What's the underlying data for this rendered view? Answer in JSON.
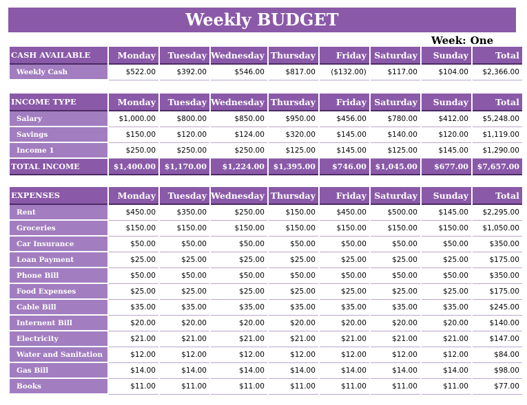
{
  "title": "Weekly BUDGET",
  "week": {
    "label": "Week:",
    "value": "One"
  },
  "days": [
    "Monday",
    "Tuesday",
    "Wednesday",
    "Thursday",
    "Friday",
    "Saturday",
    "Sunday",
    "Total"
  ],
  "cash": {
    "header": "CASH AVAILABLE",
    "rows": [
      {
        "label": "Weekly Cash",
        "values": [
          "$522.00",
          "$392.00",
          "$546.00",
          "$817.00",
          "($132.00)",
          "$117.00",
          "$104.00",
          "$2,366.00"
        ]
      }
    ]
  },
  "income": {
    "header": "INCOME TYPE",
    "rows": [
      {
        "label": "Salary",
        "values": [
          "$1,000.00",
          "$800.00",
          "$850.00",
          "$950.00",
          "$456.00",
          "$780.00",
          "$412.00",
          "$5,248.00"
        ]
      },
      {
        "label": "Savings",
        "values": [
          "$150.00",
          "$120.00",
          "$124.00",
          "$320.00",
          "$145.00",
          "$140.00",
          "$120.00",
          "$1,119.00"
        ]
      },
      {
        "label": "Income 1",
        "values": [
          "$250.00",
          "$250.00",
          "$250.00",
          "$125.00",
          "$145.00",
          "$125.00",
          "$145.00",
          "$1,290.00"
        ]
      }
    ],
    "total": {
      "label": "TOTAL INCOME",
      "values": [
        "$1,400.00",
        "$1,170.00",
        "$1,224.00",
        "$1,395.00",
        "$746.00",
        "$1,045.00",
        "$677.00",
        "$7,657.00"
      ]
    }
  },
  "expenses": {
    "header": "EXPENSES",
    "rows": [
      {
        "label": "Rent",
        "values": [
          "$450.00",
          "$350.00",
          "$250.00",
          "$150.00",
          "$450.00",
          "$500.00",
          "$145.00",
          "$2,295.00"
        ]
      },
      {
        "label": "Groceries",
        "values": [
          "$150.00",
          "$150.00",
          "$150.00",
          "$150.00",
          "$150.00",
          "$150.00",
          "$150.00",
          "$1,050.00"
        ]
      },
      {
        "label": "Car Insurance",
        "values": [
          "$50.00",
          "$50.00",
          "$50.00",
          "$50.00",
          "$50.00",
          "$50.00",
          "$50.00",
          "$350.00"
        ]
      },
      {
        "label": "Loan Payment",
        "values": [
          "$25.00",
          "$25.00",
          "$25.00",
          "$25.00",
          "$25.00",
          "$25.00",
          "$25.00",
          "$175.00"
        ]
      },
      {
        "label": "Phone Bill",
        "values": [
          "$50.00",
          "$50.00",
          "$50.00",
          "$50.00",
          "$50.00",
          "$50.00",
          "$50.00",
          "$350.00"
        ]
      },
      {
        "label": "Food Expenses",
        "values": [
          "$25.00",
          "$25.00",
          "$25.00",
          "$25.00",
          "$25.00",
          "$25.00",
          "$25.00",
          "$175.00"
        ]
      },
      {
        "label": "Cable Bill",
        "values": [
          "$35.00",
          "$35.00",
          "$35.00",
          "$35.00",
          "$35.00",
          "$35.00",
          "$35.00",
          "$245.00"
        ]
      },
      {
        "label": "Internent Bill",
        "values": [
          "$20.00",
          "$20.00",
          "$20.00",
          "$20.00",
          "$20.00",
          "$20.00",
          "$20.00",
          "$140.00"
        ]
      },
      {
        "label": "Electricity",
        "values": [
          "$21.00",
          "$21.00",
          "$21.00",
          "$21.00",
          "$21.00",
          "$21.00",
          "$21.00",
          "$147.00"
        ]
      },
      {
        "label": "Water and  Sanitation",
        "values": [
          "$12.00",
          "$12.00",
          "$12.00",
          "$12.00",
          "$12.00",
          "$12.00",
          "$12.00",
          "$84.00"
        ]
      },
      {
        "label": "Gas Bill",
        "values": [
          "$14.00",
          "$14.00",
          "$14.00",
          "$14.00",
          "$14.00",
          "$14.00",
          "$14.00",
          "$98.00"
        ]
      },
      {
        "label": "Books",
        "values": [
          "$11.00",
          "$11.00",
          "$11.00",
          "$11.00",
          "$11.00",
          "$11.00",
          "$11.00",
          "$77.00"
        ]
      }
    ]
  }
}
